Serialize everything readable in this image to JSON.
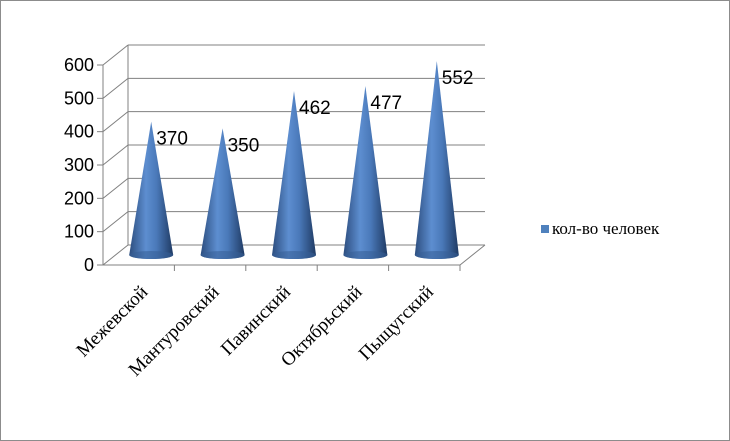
{
  "chart_data": {
    "type": "bar",
    "bar_shape": "cone",
    "categories": [
      "Межевской",
      "Мантуровский",
      "Павинский",
      "Октябрьский",
      "Пыщугский"
    ],
    "series": [
      {
        "name": "кол-во человек",
        "values": [
          370,
          350,
          462,
          477,
          552
        ],
        "color": "#4F81BD"
      }
    ],
    "data_labels": [
      "370",
      "350",
      "462",
      "477",
      "552"
    ],
    "y_ticks": [
      "0",
      "100",
      "200",
      "300",
      "400",
      "500",
      "600"
    ],
    "ylim": [
      0,
      600
    ],
    "grid": true,
    "legend_position": "right",
    "colors": {
      "series": "#4F81BD",
      "grid": "#808080"
    }
  }
}
